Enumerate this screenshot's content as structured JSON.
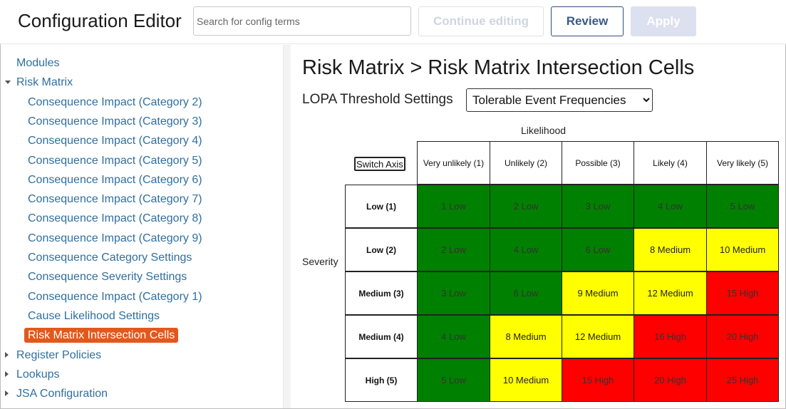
{
  "header": {
    "app_title": "Configuration Editor",
    "search_placeholder": "Search for config terms",
    "continue_label": "Continue editing",
    "review_label": "Review",
    "apply_label": "Apply"
  },
  "sidebar": {
    "items": [
      {
        "label": "Modules",
        "level": 0,
        "caret": "none"
      },
      {
        "label": "Risk Matrix",
        "level": 0,
        "caret": "down"
      },
      {
        "label": "Consequence Impact (Category 2)",
        "level": 1
      },
      {
        "label": "Consequence Impact (Category 3)",
        "level": 1
      },
      {
        "label": "Consequence Impact (Category 4)",
        "level": 1
      },
      {
        "label": "Consequence Impact (Category 5)",
        "level": 1
      },
      {
        "label": "Consequence Impact (Category 6)",
        "level": 1
      },
      {
        "label": "Consequence Impact (Category 7)",
        "level": 1
      },
      {
        "label": "Consequence Impact (Category 8)",
        "level": 1
      },
      {
        "label": "Consequence Impact (Category 9)",
        "level": 1
      },
      {
        "label": "Consequence Category Settings",
        "level": 1
      },
      {
        "label": "Consequence Severity Settings",
        "level": 1
      },
      {
        "label": "Consequence Impact (Category 1)",
        "level": 1
      },
      {
        "label": "Cause Likelihood Settings",
        "level": 1
      },
      {
        "label": "Risk Matrix Intersection Cells",
        "level": 1,
        "active": true
      },
      {
        "label": "Register Policies",
        "level": 0,
        "caret": "right"
      },
      {
        "label": "Lookups",
        "level": 0,
        "caret": "right"
      },
      {
        "label": "JSA Configuration",
        "level": 0,
        "caret": "right"
      }
    ]
  },
  "main": {
    "breadcrumb_title": "Risk Matrix > Risk Matrix Intersection Cells",
    "lopa_label": "LOPA Threshold Settings",
    "lopa_selected": "Tolerable Event Frequencies",
    "likelihood_label": "Likelihood",
    "severity_label": "Severity",
    "switch_axis_label": "Switch Axis",
    "columns": [
      "Very unlikely (1)",
      "Unlikely (2)",
      "Possible (3)",
      "Likely (4)",
      "Very likely (5)"
    ],
    "rows": [
      {
        "label": "Low (1)",
        "cells": [
          "1 Low",
          "2 Low",
          "3 Low",
          "4 Low",
          "5 Low"
        ]
      },
      {
        "label": "Low (2)",
        "cells": [
          "2 Low",
          "4 Low",
          "6 Low",
          "8 Medium",
          "10 Medium"
        ]
      },
      {
        "label": "Medium (3)",
        "cells": [
          "3 Low",
          "6 Low",
          "9 Medium",
          "12 Medium",
          "15 High"
        ]
      },
      {
        "label": "Medium (4)",
        "cells": [
          "4 Low",
          "8 Medium",
          "12 Medium",
          "16 High",
          "20 High"
        ]
      },
      {
        "label": "High (5)",
        "cells": [
          "5 Low",
          "10 Medium",
          "15 High",
          "20 High",
          "25 High"
        ]
      }
    ]
  },
  "colors": {
    "low": "#008000",
    "medium": "#ffff00",
    "high": "#ff0000",
    "active_nav": "#e2581c",
    "link": "#2f6f9f"
  }
}
